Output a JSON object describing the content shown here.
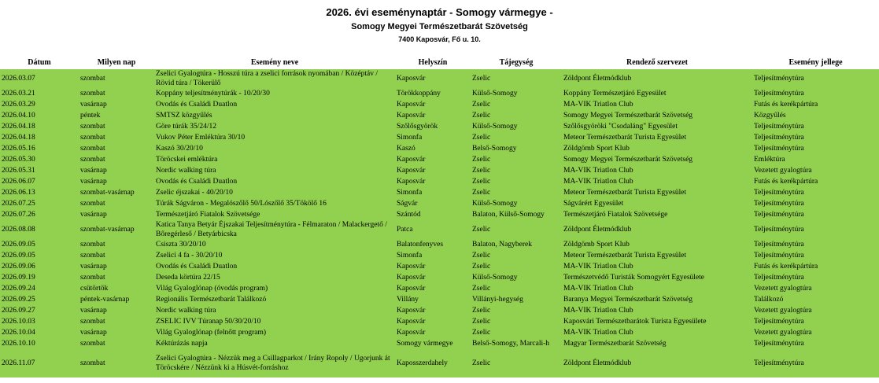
{
  "header": {
    "title": "2026. évi eseménynaptár - Somogy vármegye -",
    "subtitle": "Somogy Megyei Természetbarát Szövetség",
    "address": "7400 Kaposvár, Fő u. 10."
  },
  "columns": [
    "Dátum",
    "Milyen nap",
    "Esemény neve",
    "Helyszín",
    "Tájegység",
    "Rendező szervezet",
    "Esemény jellege"
  ],
  "rows": [
    {
      "date": "2026.03.07",
      "day": "szombat",
      "name": "Zselici Gyalogtúra - Hosszú túra a zselici források nyomában / Középtáv / Rövid túra / Tökerülő",
      "place": "Kaposvár",
      "region": "Zselic",
      "org": "Zöldpont Életmódklub",
      "type": "Teljesítménytúra"
    },
    {
      "date": "2026.03.21",
      "day": "szombat",
      "name": "Koppány teljesítménytúrák - 10/20/30",
      "place": "Törökkoppány",
      "region": "Külső-Somogy",
      "org": "Koppány Természetjáró Egyesület",
      "type": "Teljesítménytúra"
    },
    {
      "date": "2026.03.29",
      "day": "vasárnap",
      "name": "Ovodás és Családi Duatlon",
      "place": "Kaposvár",
      "region": "Zselic",
      "org": "MA-VIK Triatlon Club",
      "type": "Futás és kerékpártúra"
    },
    {
      "date": "2026.04.10",
      "day": "péntek",
      "name": "SMTSZ közgyűlés",
      "place": "Kaposvár",
      "region": "Zselic",
      "org": "Somogy Megyei Természetbarát Szövetség",
      "type": "Közgyűlés"
    },
    {
      "date": "2026.04.18",
      "day": "szombat",
      "name": "Göre túrák 35/24/12",
      "place": "Szőlősgyörök",
      "region": "Külső-Somogy",
      "org": "Szőlősgyöröki \"Csodaláng\" Egyesület",
      "type": "Teljesítménytúra"
    },
    {
      "date": "2026.04.18",
      "day": "szombat",
      "name": "Vukov Péter Emléktúra 30/10",
      "place": "Simonfa",
      "region": "Zselic",
      "org": "Meteor Természetbarát Turista Egyesület",
      "type": "Teljesítménytúra"
    },
    {
      "date": "2026.05.16",
      "day": "szombat",
      "name": "Kaszó 30/20/10",
      "place": "Kaszó",
      "region": "Belső-Somogy",
      "org": "Zöldgömb Sport Klub",
      "type": "Teljesítménytúra"
    },
    {
      "date": "2026.05.30",
      "day": "szombat",
      "name": "Töröcskei emléktúra",
      "place": "Kaposvár",
      "region": "Zselic",
      "org": "Somogy Megyei Természetbarát Szövetség",
      "type": "Emléktúra"
    },
    {
      "date": "2026.05.31",
      "day": "vasárnap",
      "name": "Nordic walking túra",
      "place": "Kaposvár",
      "region": "Zselic",
      "org": "MA-VIK Triatlon Club",
      "type": "Vezetett gyalogtúra"
    },
    {
      "date": "2026.06.07",
      "day": "vasárnap",
      "name": "Ovodás és Családi Duatlon",
      "place": "Kaposvár",
      "region": "Zselic",
      "org": "MA-VIK Triatlon Club",
      "type": "Futás és kerékpártúra"
    },
    {
      "date": "2026.06.13",
      "day": "szombat-vasárnap",
      "name": "Zselic éjszakai - 40/20/10",
      "place": "Simonfa",
      "region": "Zselic",
      "org": "Meteor Természetbarát Turista Egyesület",
      "type": "Teljesítménytúra"
    },
    {
      "date": "2026.07.25",
      "day": "szombat",
      "name": "Túrák Ságváron - Megalószőlő 50/Lószőlő 35/Tökölő 16",
      "place": "Ságvár",
      "region": "Külső-Somogy",
      "org": "Ságvárért Egyesület",
      "type": "Teljesítménytúra"
    },
    {
      "date": "2026.07.26",
      "day": "vasárnap",
      "name": "Természetjáró Fiatalok Szövetsége",
      "place": "Szántód",
      "region": "Balaton, Külső-Somogy",
      "org": "Természetjáró Fiatalok Szövetsége",
      "type": "Teljesítménytúra"
    },
    {
      "date": "2026.08.08",
      "day": "szombat-vasárnap",
      "name": "Katica Tanya Betyár Éjszakai Teljesítménytúra - Félmaraton / Malackergető / Bőregérleső / Betyárbicska",
      "place": "Patca",
      "region": "Zselic",
      "org": "Zöldpont Életmódklub",
      "type": "Teljesítménytúra"
    },
    {
      "date": "2026.09.05",
      "day": "szombat",
      "name": "Csiszta 30/20/10",
      "place": "Balatonfenyves",
      "region": "Balaton, Nagyberek",
      "org": "Zöldgömb Sport Klub",
      "type": "Teljesítménytúra"
    },
    {
      "date": "2026.09.05",
      "day": "szombat",
      "name": "Zselici 4 fa - 30/20/10",
      "place": "Simonfa",
      "region": "Zselic",
      "org": "Meteor Természetbarát Turista Egyesület",
      "type": "Teljesítménytúra"
    },
    {
      "date": "2026.09.06",
      "day": "vasárnap",
      "name": "Ovodás és Családi Duatlon",
      "place": "Kaposvár",
      "region": "Zselic",
      "org": "MA-VIK Triatlon Club",
      "type": "Futás és kerékpártúra"
    },
    {
      "date": "2026.09.19",
      "day": "szombat",
      "name": "Deseda körtúra 22/15",
      "place": "Kaposvár",
      "region": "Külső-Somogy",
      "org": "Természetvédő Turisták Somogyért Egyesülete",
      "type": "Teljesítménytúra"
    },
    {
      "date": "2026.09.24",
      "day": "csütörtök",
      "name": "Világ Gyaloglónap (óvodás program)",
      "place": "Kaposvár",
      "region": "Zselic",
      "org": "MA-VIK Triatlon Club",
      "type": "Vezetett gyalogtúra"
    },
    {
      "date": "2026.09.25",
      "day": "péntek-vasárnap",
      "name": "Regionális Természetbarát Találkozó",
      "place": "Villány",
      "region": "Villányi-hegység",
      "org": "Baranya Megyei Természetbarát Szövetség",
      "type": "Találkozó"
    },
    {
      "date": "2026.09.27",
      "day": "vasárnap",
      "name": "Nordic walking túra",
      "place": "Kaposvár",
      "region": "Zselic",
      "org": "MA-VIK Triatlon Club",
      "type": "Vezetett gyalogtúra"
    },
    {
      "date": "2026.10.03",
      "day": "szombat",
      "name": "ZSELIC IVV Túranap 50/30/20/10",
      "place": "Kaposvár",
      "region": "Zselic",
      "org": "Kaposvári Természetbarátok Turista Egyesülete",
      "type": "Teljesítménytúra"
    },
    {
      "date": "2026.10.04",
      "day": "vasárnap",
      "name": "Világ Gyaloglónap (felnőtt program)",
      "place": "Kaposvár",
      "region": "Zselic",
      "org": "MA-VIK Triatlon Club",
      "type": "Vezetett gyalogtúra"
    },
    {
      "date": "2026.10.10",
      "day": "szombat",
      "name": "Kéktúrázás napja",
      "place": "Somogy vármegye",
      "region": "Belső-Somogy, Marcali-h",
      "org": "Magyar Természetbarát Szövetség",
      "type": "Teljesítménytúra"
    },
    {
      "date": "2026.11.07",
      "day": "szombat",
      "name": "Zselici Gyalogtúra - Nézzük meg a Csillagparkot / Irány Ropoly / Ugorjunk át Töröcskére / Nézzünk ki a Húsvét-forráshoz",
      "place": "Kaposszerdahely",
      "region": "Zselic",
      "org": "Zöldpont Életmódklub",
      "type": "Teljesítménytúra"
    }
  ]
}
